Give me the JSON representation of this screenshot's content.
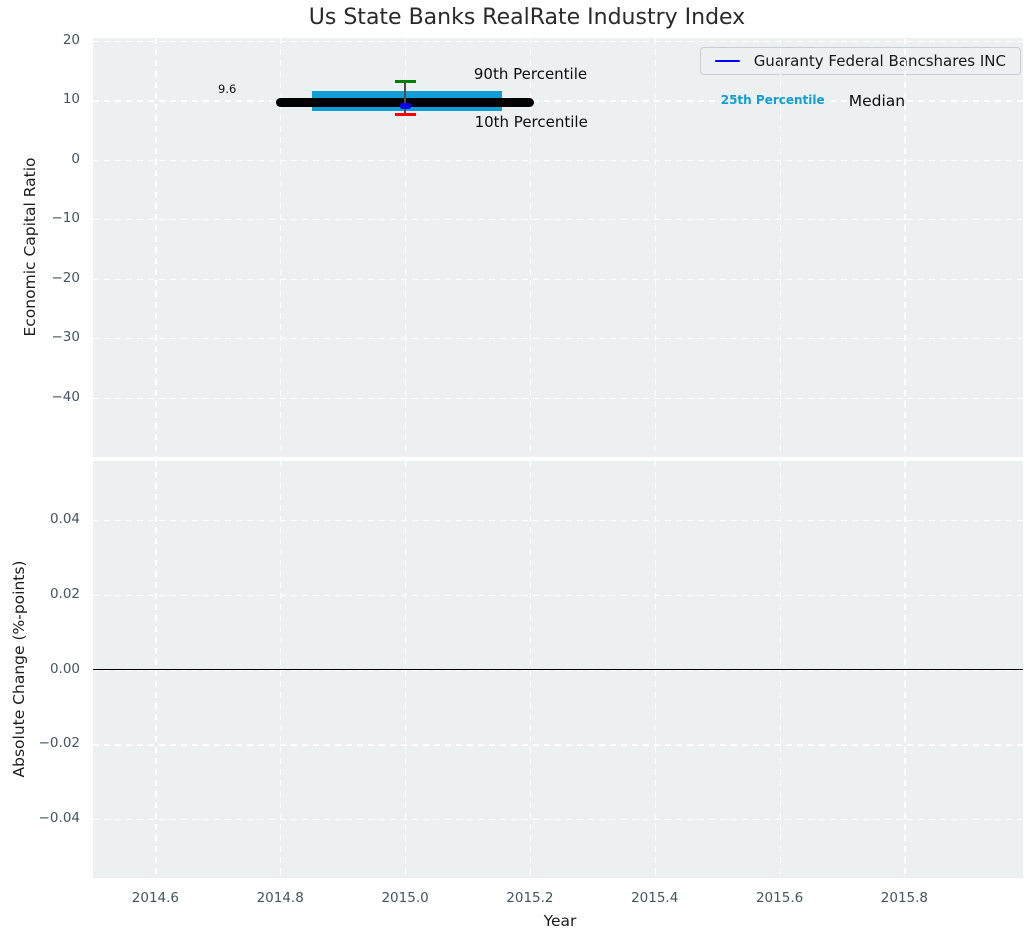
{
  "title": "Us State Banks RealRate Industry Index",
  "legend": {
    "label": "Guaranty Federal Bancshares INC",
    "line_color": "#0000ff"
  },
  "colors": {
    "axes_background": "#ecf0f1",
    "grid": "#ffffff",
    "tick_text": "#455560",
    "title_text": "#2a2a2a",
    "percentile_band": "#0f9ed5",
    "median_line": "#000000",
    "p90_cap": "#008000",
    "p10_cap": "#ff0000",
    "whisker_line": "#4d4d4d",
    "company_marker": "#0000ff"
  },
  "chart_data": [
    {
      "type": "line",
      "title": "Us State Banks RealRate Industry Index",
      "ylabel": "Economic Capital Ratio",
      "xlim": [
        2014.5,
        2015.99
      ],
      "ylim": [
        -50,
        20.5
      ],
      "xticks": [
        2014.6,
        2014.8,
        2015.0,
        2015.2,
        2015.4,
        2015.6,
        2015.8
      ],
      "xtick_labels": [
        "2014.6",
        "2014.8",
        "2015.0",
        "2015.2",
        "2015.4",
        "2015.6",
        "2015.8"
      ],
      "yticks": [
        20,
        10,
        0,
        -10,
        -20,
        -30,
        -40
      ],
      "ytick_labels": [
        "20",
        "10",
        "0",
        "−10",
        "−20",
        "−30",
        "−40"
      ],
      "grid": {
        "color": "#ffffff",
        "style": "dashed",
        "on": true
      },
      "legend": {
        "label": "Guaranty Federal Bancshares INC",
        "color": "#0000ff",
        "position": "upper right"
      },
      "marks": {
        "median_line": {
          "label": "Median",
          "x": [
            2014.8,
            2015.2
          ],
          "y": 9.6,
          "color": "#000000"
        },
        "percentile_band": {
          "label": "25th Percentile",
          "x": [
            2014.85,
            2015.155
          ],
          "y_low": 8.2,
          "y_high": 11.6,
          "color": "#0f9ed5"
        },
        "whisker": {
          "x": 2015.0,
          "p10": 7.6,
          "p90": 13.2,
          "p90_label": "90th Percentile",
          "p10_label": "10th Percentile",
          "p90_color": "#008000",
          "p10_color": "#ff0000",
          "line_color": "#4d4d4d"
        },
        "company_point": {
          "label": "Guaranty Federal Bancshares INC",
          "x": 2015.0,
          "y": 9.0,
          "color": "#0000ff"
        }
      },
      "annotations": [
        {
          "text": "9.6",
          "x": 2014.715,
          "y": 11.9,
          "color": "#111111",
          "size": 11.5,
          "weight": "normal"
        },
        {
          "text": "90th Percentile",
          "x": 2015.201,
          "y": 14.4,
          "color": "#0d0d0d",
          "size": 15,
          "weight": "normal"
        },
        {
          "text": "10th Percentile",
          "x": 2015.202,
          "y": 6.4,
          "color": "#0d0d0d",
          "size": 15,
          "weight": "normal"
        },
        {
          "text": "25th Percentile",
          "x": 2015.589,
          "y": 10.05,
          "color": "#0f9ed5",
          "size": 12,
          "weight": "bold"
        },
        {
          "text": "Median",
          "x": 2015.756,
          "y": 9.85,
          "color": "#0d0d0d",
          "size": 15.5,
          "weight": "normal"
        }
      ]
    },
    {
      "type": "line",
      "ylabel": "Absolute Change (%-points)",
      "xlabel": "Year",
      "xlim": [
        2014.5,
        2015.99
      ],
      "ylim": [
        -0.0557,
        0.0557
      ],
      "xticks": [
        2014.6,
        2014.8,
        2015.0,
        2015.2,
        2015.4,
        2015.6,
        2015.8
      ],
      "xtick_labels": [
        "2014.6",
        "2014.8",
        "2015.0",
        "2015.2",
        "2015.4",
        "2015.6",
        "2015.8"
      ],
      "yticks": [
        0.04,
        0.02,
        0.0,
        -0.02,
        -0.04
      ],
      "ytick_labels": [
        "0.04",
        "0.02",
        "0.00",
        "−0.02",
        "−0.04"
      ],
      "grid": {
        "color": "#ffffff",
        "style": "dashed",
        "on": true
      },
      "zero_line": {
        "y": 0.0,
        "color": "#000000"
      },
      "series": []
    }
  ]
}
